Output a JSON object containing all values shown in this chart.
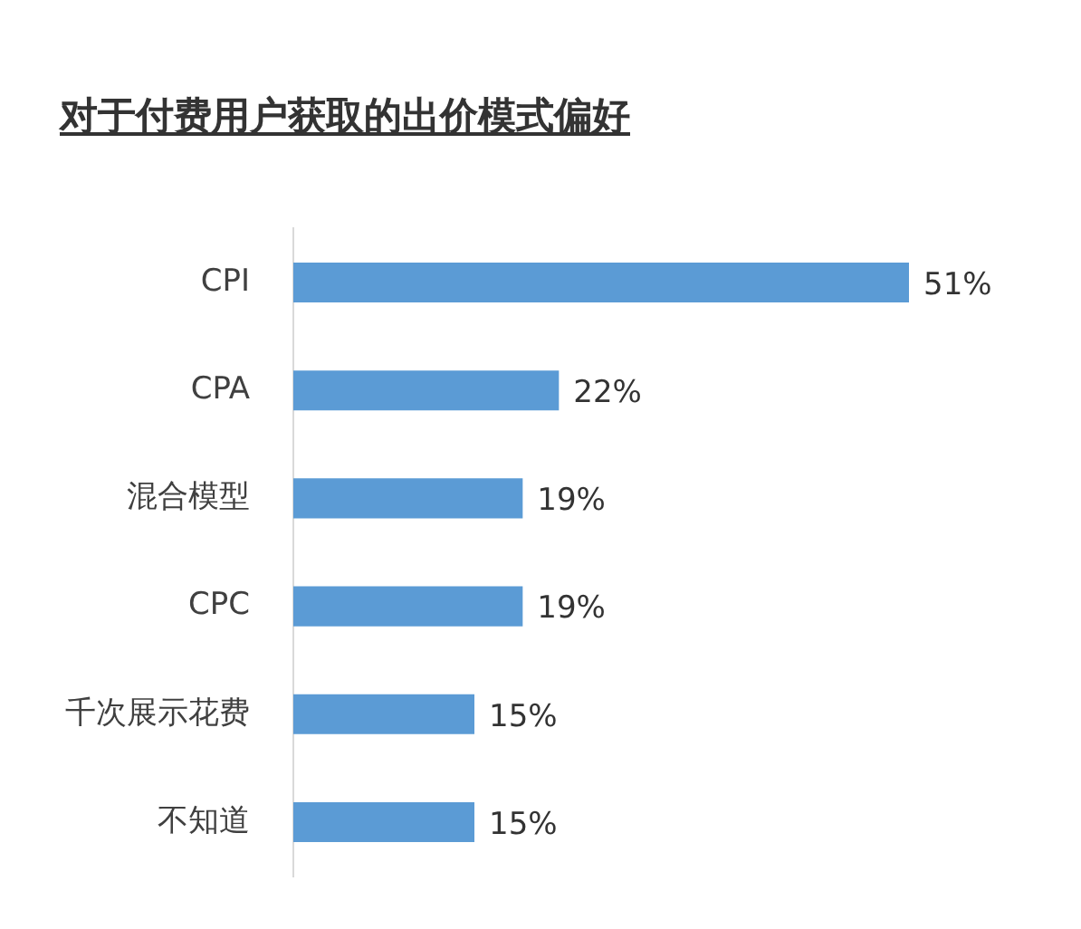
{
  "chart_data": {
    "type": "bar",
    "orientation": "horizontal",
    "title": "对于付费用户获取的出价模式偏好",
    "categories": [
      "CPI",
      "CPA",
      "混合模型",
      "CPC",
      "千次展示花费",
      "不知道"
    ],
    "values": [
      51,
      22,
      19,
      19,
      15,
      15
    ],
    "value_labels": [
      "51%",
      "22%",
      "19%",
      "19%",
      "15%",
      "15%"
    ],
    "color": "#5b9bd5",
    "legend": false,
    "tick_labels": "y"
  }
}
